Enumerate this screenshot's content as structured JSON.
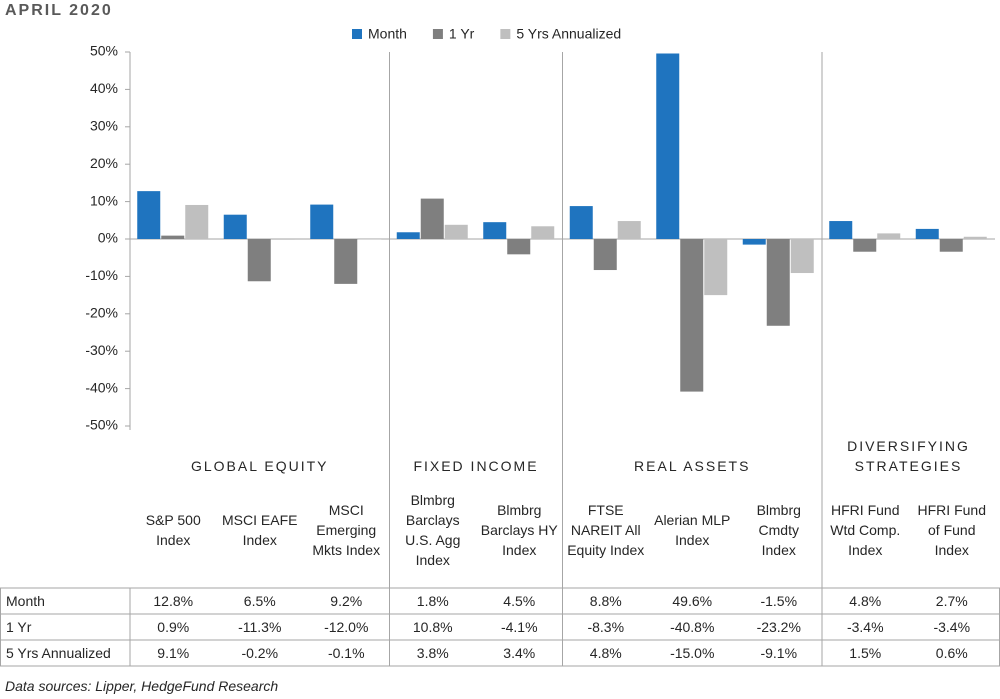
{
  "chart_data": {
    "type": "bar",
    "title": "APRIL 2020",
    "groups": [
      {
        "name": "GLOBAL EQUITY",
        "categories": [
          "S&P 500 Index",
          "MSCI EAFE Index",
          "MSCI Emerging Mkts Index"
        ]
      },
      {
        "name": "FIXED INCOME",
        "categories": [
          "Blmbrg Barclays U.S. Agg Index",
          "Blmbrg Barclays HY Index"
        ]
      },
      {
        "name": "REAL ASSETS",
        "categories": [
          "FTSE NAREIT All Equity Index",
          "Alerian MLP Index",
          "Blmbrg Cmdty Index"
        ]
      },
      {
        "name": "DIVERSIFYING STRATEGIES",
        "categories": [
          "HFRI Fund Wtd Comp. Index",
          "HFRI Fund of Fund Index"
        ]
      }
    ],
    "series": [
      {
        "name": "Month",
        "color": "#1f74bf",
        "values": [
          12.8,
          6.5,
          9.2,
          1.8,
          4.5,
          8.8,
          49.6,
          -1.5,
          4.8,
          2.7
        ],
        "value_labels": [
          "12.8%",
          "6.5%",
          "9.2%",
          "1.8%",
          "4.5%",
          "8.8%",
          "49.6%",
          "-1.5%",
          "4.8%",
          "2.7%"
        ]
      },
      {
        "name": "1 Yr",
        "color": "#7f7f7f",
        "values": [
          0.9,
          -11.3,
          -12.0,
          10.8,
          -4.1,
          -8.3,
          -40.8,
          -23.2,
          -3.4,
          -3.4
        ],
        "value_labels": [
          "0.9%",
          "-11.3%",
          "-12.0%",
          "10.8%",
          "-4.1%",
          "-8.3%",
          "-40.8%",
          "-23.2%",
          "-3.4%",
          "-3.4%"
        ]
      },
      {
        "name": "5 Yrs Annualized",
        "color": "#bfbfbf",
        "values": [
          9.1,
          -0.2,
          -0.1,
          3.8,
          3.4,
          4.8,
          -15.0,
          -9.1,
          1.5,
          0.6
        ],
        "value_labels": [
          "9.1%",
          "-0.2%",
          "-0.1%",
          "3.8%",
          "3.4%",
          "4.8%",
          "-15.0%",
          "-9.1%",
          "1.5%",
          "0.6%"
        ]
      }
    ],
    "ylim": [
      -50,
      50
    ],
    "yticks": [
      {
        "value": 50,
        "label": "50%"
      },
      {
        "value": 40,
        "label": "40%"
      },
      {
        "value": 30,
        "label": "30%"
      },
      {
        "value": 20,
        "label": "20%"
      },
      {
        "value": 10,
        "label": "10%"
      },
      {
        "value": 0,
        "label": "0%"
      },
      {
        "value": -10,
        "label": "-10%"
      },
      {
        "value": -20,
        "label": "-20%"
      },
      {
        "value": -30,
        "label": "-30%"
      },
      {
        "value": -40,
        "label": "-40%"
      },
      {
        "value": -50,
        "label": "-50%"
      }
    ],
    "source": "Data sources: Lipper, HedgeFund Research"
  }
}
